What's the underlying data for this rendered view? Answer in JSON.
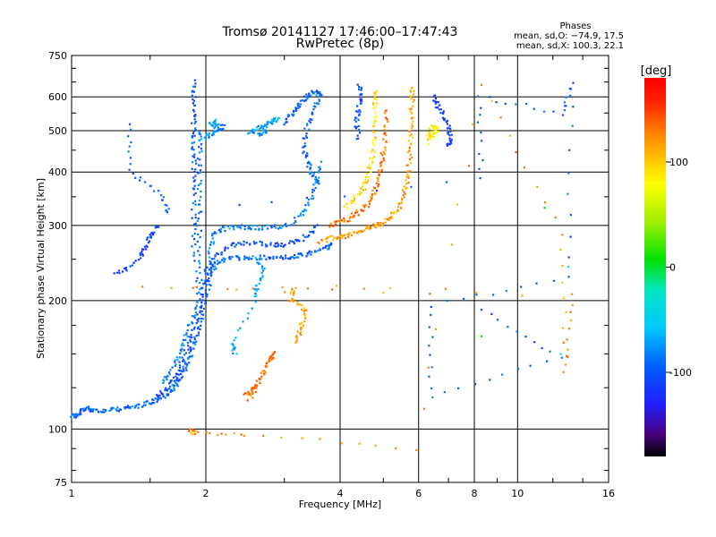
{
  "chart_data": {
    "type": "scatter",
    "title": "Tromsø 20141127 17:46:00–17:47:43",
    "subtitle": "RwPretec (8p)",
    "xlabel": "Frequency [MHz]",
    "ylabel": "Stationary phase Virtual Height [km]",
    "x_scale": "log",
    "y_scale": "log",
    "xlim": [
      1,
      16
    ],
    "ylim": [
      75,
      750
    ],
    "x_ticks": [
      1,
      2,
      4,
      6,
      8,
      10,
      16
    ],
    "x_tick_labels": [
      "1",
      "2",
      "4",
      "6",
      "8",
      "10",
      "16"
    ],
    "y_ticks": [
      75,
      100,
      200,
      300,
      400,
      500,
      600,
      750
    ],
    "y_tick_labels": [
      "75",
      "100",
      "200",
      "300",
      "400",
      "500",
      "600",
      "750"
    ],
    "grid": true,
    "stats": {
      "heading": "Phases",
      "line_o": "mean, sd,O: −74.9, 17.5",
      "line_x": "mean, sd,X: 100.3, 22.1"
    },
    "colorbar": {
      "unit": "[deg]",
      "range": [
        -180,
        180
      ],
      "ticks": [
        100,
        0,
        -100
      ],
      "tick_labels": [
        "100",
        "0",
        "-100"
      ]
    },
    "series": [
      {
        "traces": [
          {
            "phase": -95,
            "points": [
              [
                1.0,
                108
              ],
              [
                1.02,
                107
              ],
              [
                1.05,
                110
              ],
              [
                1.08,
                112
              ],
              [
                1.12,
                111
              ],
              [
                1.18,
                110
              ],
              [
                1.25,
                111
              ],
              [
                1.32,
                112
              ],
              [
                1.4,
                113
              ],
              [
                1.48,
                115
              ],
              [
                1.55,
                117
              ],
              [
                1.62,
                120
              ],
              [
                1.68,
                124
              ],
              [
                1.72,
                128
              ],
              [
                1.76,
                133
              ],
              [
                1.8,
                140
              ],
              [
                1.84,
                148
              ],
              [
                1.88,
                158
              ],
              [
                1.92,
                170
              ],
              [
                1.96,
                185
              ],
              [
                2.0,
                205
              ],
              [
                2.05,
                230
              ],
              [
                2.1,
                245
              ],
              [
                2.2,
                250
              ],
              [
                2.35,
                252
              ],
              [
                2.5,
                251
              ],
              [
                2.7,
                252
              ],
              [
                2.9,
                252
              ],
              [
                3.1,
                253
              ],
              [
                3.3,
                255
              ],
              [
                3.5,
                260
              ],
              [
                3.7,
                265
              ],
              [
                3.85,
                272
              ]
            ]
          },
          {
            "phase": -105,
            "points": [
              [
                1.55,
                118
              ],
              [
                1.62,
                124
              ],
              [
                1.7,
                132
              ],
              [
                1.76,
                142
              ],
              [
                1.82,
                155
              ],
              [
                1.88,
                172
              ],
              [
                1.94,
                195
              ],
              [
                2.0,
                220
              ],
              [
                2.05,
                240
              ],
              [
                2.1,
                255
              ],
              [
                2.25,
                268
              ],
              [
                2.4,
                272
              ],
              [
                2.6,
                272
              ],
              [
                2.8,
                270
              ],
              [
                3.0,
                270
              ],
              [
                3.2,
                275
              ],
              [
                3.4,
                285
              ],
              [
                3.55,
                300
              ]
            ]
          },
          {
            "phase": -85,
            "points": [
              [
                1.6,
                128
              ],
              [
                1.68,
                138
              ],
              [
                1.74,
                150
              ],
              [
                1.8,
                165
              ],
              [
                1.86,
                180
              ],
              [
                1.92,
                200
              ],
              [
                1.98,
                225
              ],
              [
                2.05,
                265
              ],
              [
                2.1,
                290
              ],
              [
                2.2,
                295
              ],
              [
                2.35,
                298
              ],
              [
                2.5,
                297
              ],
              [
                2.7,
                296
              ],
              [
                2.9,
                298
              ],
              [
                3.1,
                302
              ],
              [
                3.3,
                320
              ],
              [
                3.45,
                345
              ],
              [
                3.55,
                380
              ],
              [
                3.6,
                420
              ]
            ]
          },
          {
            "phase": -100,
            "points": [
              [
                1.88,
                250
              ],
              [
                1.88,
                300
              ],
              [
                1.88,
                350
              ],
              [
                1.88,
                400
              ],
              [
                1.88,
                450
              ],
              [
                1.88,
                500
              ],
              [
                1.88,
                550
              ],
              [
                1.88,
                600
              ],
              [
                1.88,
                650
              ]
            ]
          },
          {
            "phase": -90,
            "points": [
              [
                1.92,
                220
              ],
              [
                1.93,
                260
              ],
              [
                1.93,
                320
              ],
              [
                1.94,
                380
              ],
              [
                1.94,
                440
              ],
              [
                1.95,
                500
              ]
            ]
          },
          {
            "phase": -80,
            "points": [
              [
                1.96,
                480
              ],
              [
                2.05,
                490
              ],
              [
                2.12,
                500
              ],
              [
                2.18,
                510
              ],
              [
                2.05,
                515
              ],
              [
                2.1,
                525
              ]
            ]
          },
          {
            "phase": -75,
            "points": [
              [
                2.5,
                495
              ],
              [
                2.6,
                505
              ],
              [
                2.7,
                515
              ],
              [
                2.8,
                525
              ],
              [
                2.9,
                535
              ],
              [
                2.6,
                490
              ],
              [
                2.75,
                500
              ]
            ]
          },
          {
            "phase": -95,
            "points": [
              [
                3.0,
                520
              ],
              [
                3.1,
                545
              ],
              [
                3.2,
                570
              ],
              [
                3.3,
                590
              ],
              [
                3.4,
                610
              ],
              [
                3.55,
                620
              ],
              [
                3.6,
                600
              ],
              [
                3.5,
                560
              ],
              [
                3.4,
                520
              ],
              [
                3.3,
                470
              ],
              [
                3.35,
                430
              ],
              [
                3.45,
                400
              ],
              [
                3.55,
                380
              ]
            ]
          },
          {
            "phase": -70,
            "points": [
              [
                2.6,
                250
              ],
              [
                2.7,
                232
              ],
              [
                2.6,
                215
              ],
              [
                2.6,
                205
              ],
              [
                2.3,
                160
              ],
              [
                2.32,
                150
              ]
            ]
          },
          {
            "phase": -110,
            "points": [
              [
                1.25,
                230
              ],
              [
                1.35,
                240
              ],
              [
                1.45,
                262
              ],
              [
                1.55,
                300
              ],
              [
                1.5,
                280
              ],
              [
                1.42,
                250
              ]
            ]
          }
        ]
      },
      {
        "traces": [
          {
            "phase": 130,
            "points": [
              [
                2.45,
                120
              ],
              [
                2.55,
                124
              ],
              [
                2.65,
                130
              ],
              [
                2.72,
                138
              ],
              [
                2.8,
                146
              ],
              [
                2.85,
                152
              ],
              [
                2.5,
                118
              ],
              [
                2.6,
                126
              ]
            ]
          },
          {
            "phase": 110,
            "points": [
              [
                3.2,
                160
              ],
              [
                3.25,
                170
              ],
              [
                3.3,
                180
              ],
              [
                3.35,
                190
              ],
              [
                3.1,
                200
              ],
              [
                3.15,
                215
              ]
            ]
          },
          {
            "phase": 115,
            "points": [
              [
                3.6,
                275
              ],
              [
                3.8,
                280
              ],
              [
                4.0,
                282
              ],
              [
                4.2,
                285
              ],
              [
                4.4,
                290
              ],
              [
                4.6,
                295
              ],
              [
                4.8,
                300
              ],
              [
                5.0,
                305
              ],
              [
                5.2,
                315
              ],
              [
                5.4,
                330
              ],
              [
                5.55,
                350
              ],
              [
                5.65,
                380
              ],
              [
                5.72,
                420
              ],
              [
                5.75,
                470
              ],
              [
                5.78,
                520
              ],
              [
                5.8,
                580
              ],
              [
                5.8,
                630
              ]
            ]
          },
          {
            "phase": 130,
            "points": [
              [
                3.8,
                300
              ],
              [
                4.0,
                305
              ],
              [
                4.2,
                312
              ],
              [
                4.4,
                322
              ],
              [
                4.6,
                335
              ],
              [
                4.75,
                355
              ],
              [
                4.85,
                380
              ],
              [
                4.95,
                410
              ],
              [
                5.0,
                450
              ],
              [
                5.05,
                500
              ],
              [
                5.1,
                560
              ]
            ]
          },
          {
            "phase": 95,
            "points": [
              [
                4.1,
                330
              ],
              [
                4.3,
                345
              ],
              [
                4.5,
                365
              ],
              [
                4.6,
                390
              ],
              [
                4.7,
                420
              ],
              [
                4.75,
                460
              ],
              [
                4.8,
                520
              ],
              [
                4.8,
                580
              ],
              [
                4.8,
                620
              ]
            ]
          },
          {
            "phase": 85,
            "points": [
              [
                6.3,
                480
              ],
              [
                6.5,
                490
              ],
              [
                6.6,
                505
              ],
              [
                6.4,
                515
              ],
              [
                6.35,
                470
              ]
            ]
          },
          {
            "phase": -115,
            "points": [
              [
                6.5,
                600
              ],
              [
                6.6,
                575
              ],
              [
                6.8,
                545
              ],
              [
                7.0,
                510
              ],
              [
                7.05,
                480
              ],
              [
                7.0,
                460
              ]
            ]
          },
          {
            "phase": -105,
            "points": [
              [
                4.4,
                640
              ],
              [
                4.45,
                600
              ],
              [
                4.4,
                560
              ],
              [
                4.35,
                520
              ],
              [
                4.4,
                480
              ]
            ]
          }
        ]
      },
      {
        "traces": [
          {
            "phase": -100,
            "points": [
              [
                1.35,
                520
              ],
              [
                1.36,
                395
              ],
              [
                1.6,
                355
              ],
              [
                1.65,
                320
              ],
              [
                8.3,
                385
              ],
              [
                8.2,
                600
              ],
              [
                12.6,
                550
              ],
              [
                13.2,
                640
              ],
              [
                13.0,
                225
              ],
              [
                6.4,
                195
              ],
              [
                6.4,
                118
              ],
              [
                12.5,
                148
              ],
              [
                8.3,
                190
              ]
            ]
          },
          {
            "phase": 120,
            "points": [
              [
                1.85,
                99
              ],
              [
                1.88,
                98
              ],
              [
                2.45,
                97
              ],
              [
                5.9,
                90
              ],
              [
                8.3,
                640
              ],
              [
                12.6,
                285
              ],
              [
                12.8,
                135
              ],
              [
                13.2,
                205
              ],
              [
                1.45,
                215
              ],
              [
                5.2,
                215
              ]
            ]
          },
          {
            "phase": -10,
            "points": [
              [
                11.5,
                330
              ],
              [
                13.0,
                240
              ],
              [
                8.3,
                165
              ],
              [
                12.5,
                150
              ]
            ]
          }
        ]
      }
    ]
  }
}
